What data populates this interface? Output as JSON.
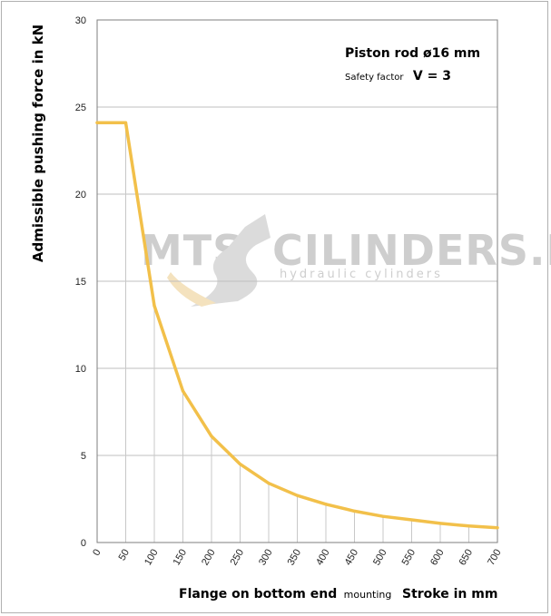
{
  "chart_data": {
    "type": "line",
    "xlabel_main": "Flange on bottom end",
    "xlabel_small": "mounting",
    "xlabel_right": "Stroke in mm",
    "ylabel": "Admissible pushing  force in kN",
    "annotation_line1": "Piston rod ø16 mm",
    "annotation_line2_small": "Safety factor",
    "annotation_line2_big": "V = 3",
    "watermark_left": "MTS",
    "watermark_right": "CILINDERS.NL",
    "watermark_sub": "hydraulic  cylinders",
    "xlim": [
      0,
      700
    ],
    "ylim": [
      0,
      30
    ],
    "x_ticks": [
      0,
      50,
      100,
      150,
      200,
      250,
      300,
      350,
      400,
      450,
      500,
      550,
      600,
      650,
      700
    ],
    "y_ticks": [
      0,
      5,
      10,
      15,
      20,
      25,
      30
    ],
    "grid": "horizontal",
    "series": [
      {
        "color": "#f2c04a",
        "x": [
          0,
          50,
          100,
          150,
          200,
          250,
          300,
          350,
          400,
          450,
          500,
          550,
          600,
          650,
          700
        ],
        "y": [
          24.1,
          24.1,
          13.6,
          8.7,
          6.1,
          4.5,
          3.4,
          2.7,
          2.2,
          1.8,
          1.5,
          1.3,
          1.1,
          0.95,
          0.85
        ]
      }
    ]
  }
}
